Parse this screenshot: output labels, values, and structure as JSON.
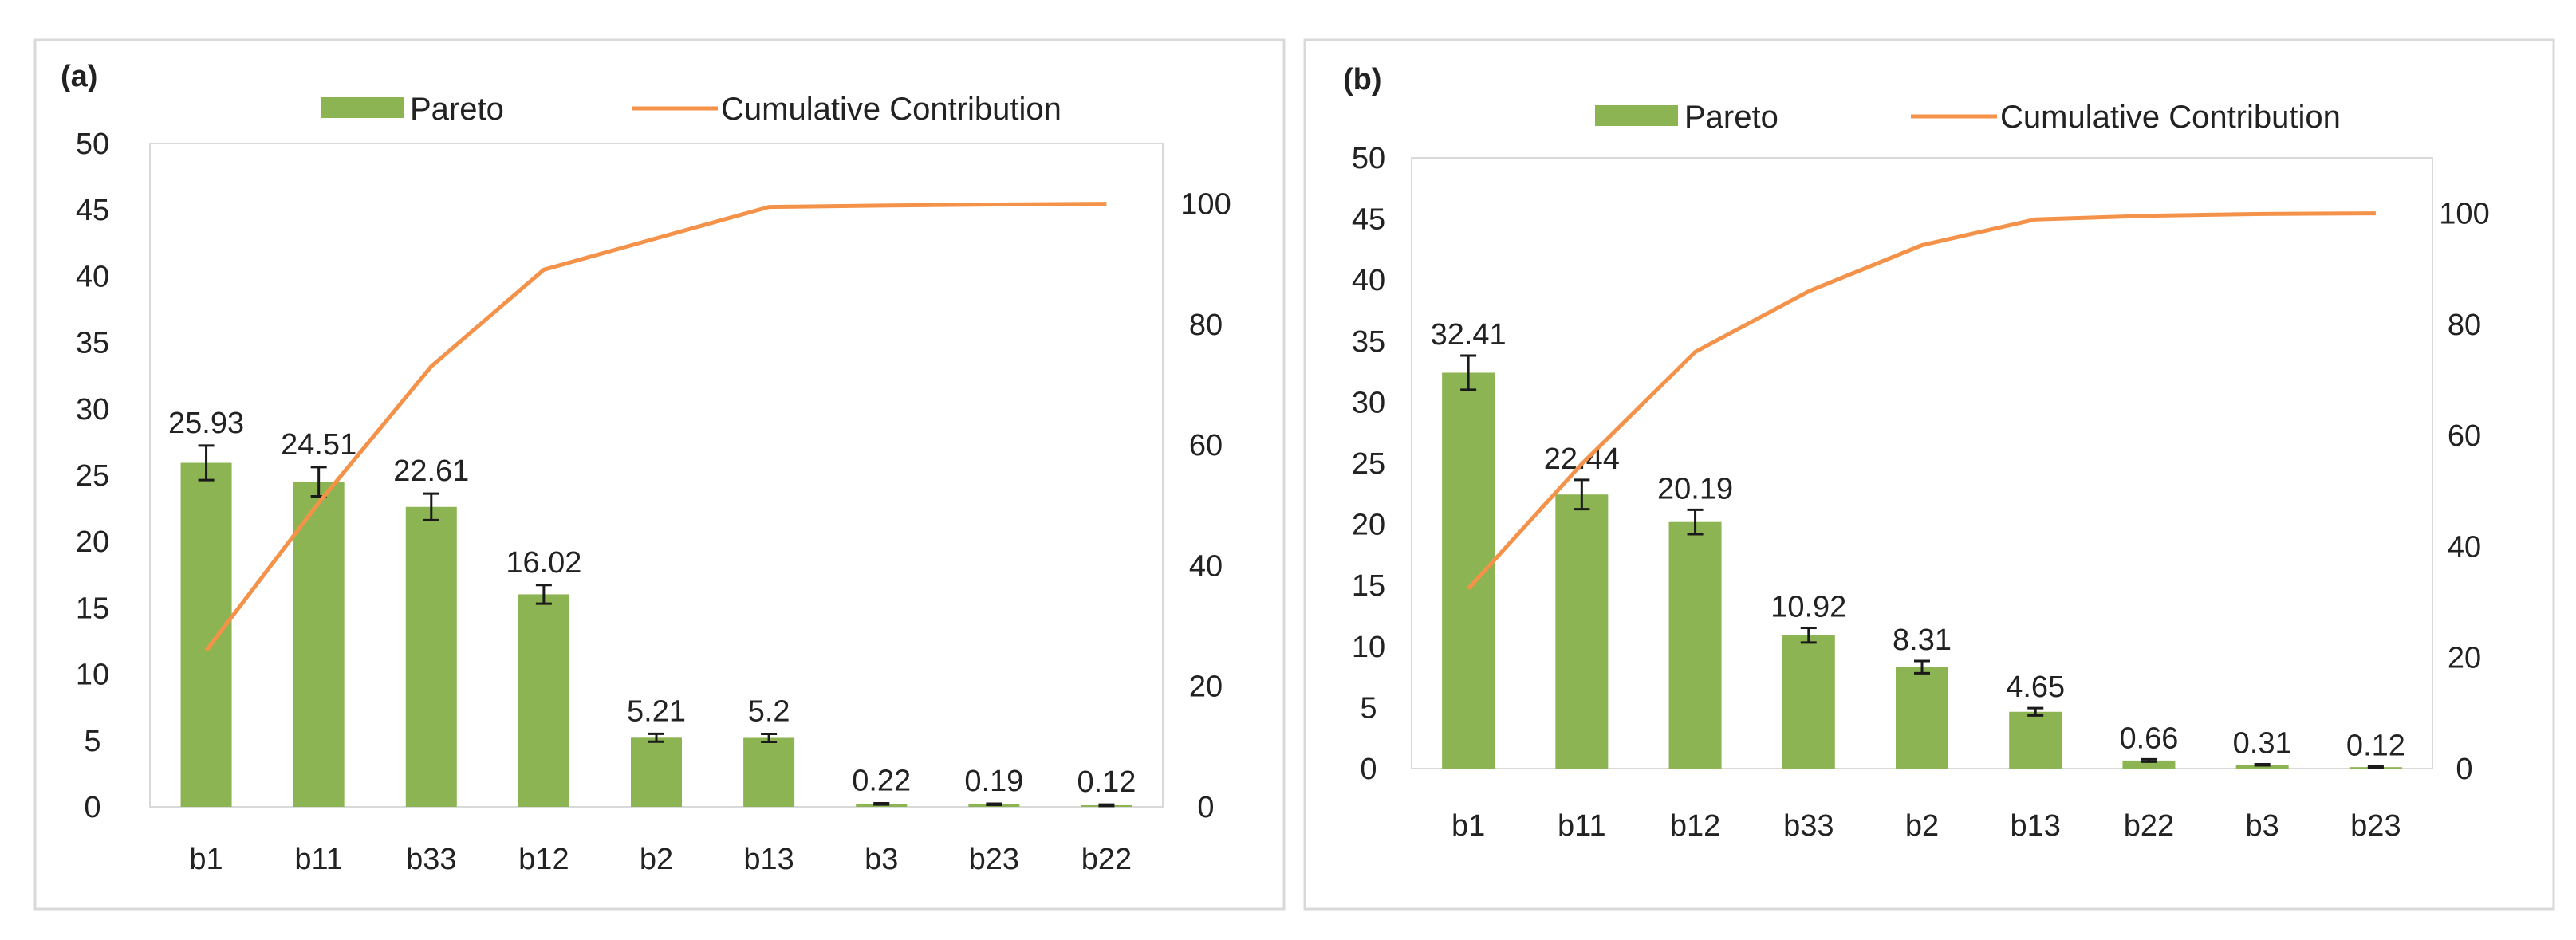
{
  "colors": {
    "bar": "#8db452",
    "line": "#f4924a"
  },
  "chart_data": [
    {
      "type": "bar",
      "title": "",
      "panel_label": "(a)",
      "xlabel": "",
      "ylabel": "",
      "categories": [
        "b1",
        "b11",
        "b33",
        "b12",
        "b2",
        "b13",
        "b3",
        "b23",
        "b22"
      ],
      "series": [
        {
          "name": "Pareto",
          "type": "bar",
          "axis": "left",
          "values": [
            25.93,
            24.51,
            22.61,
            16.02,
            5.21,
            5.2,
            0.22,
            0.19,
            0.12
          ],
          "errors": [
            1.3,
            1.1,
            1.0,
            0.7,
            0.3,
            0.3,
            0.05,
            0.05,
            0.05
          ],
          "labels": [
            "25.93",
            "24.51",
            "22.61",
            "16.02",
            "5.21",
            "5.2",
            "0.22",
            "0.19",
            "0.12"
          ]
        },
        {
          "name": "Cumulative Contribution",
          "type": "line",
          "axis": "right",
          "values": [
            25.93,
            50.44,
            73.05,
            89.07,
            94.28,
            99.48,
            99.7,
            99.89,
            100.01
          ]
        }
      ],
      "ylim": [
        0,
        50
      ],
      "yticks": [
        "0",
        "5",
        "10",
        "15",
        "20",
        "25",
        "30",
        "35",
        "40",
        "45",
        "50"
      ],
      "y2lim": [
        0,
        110
      ],
      "y2ticks": [
        "0",
        "20",
        "40",
        "60",
        "80",
        "100"
      ],
      "legend": "top-center",
      "grid": false
    },
    {
      "type": "bar",
      "title": "",
      "panel_label": "(b)",
      "xlabel": "",
      "ylabel": "",
      "categories": [
        "b1",
        "b11",
        "b12",
        "b33",
        "b2",
        "b13",
        "b22",
        "b3",
        "b23"
      ],
      "series": [
        {
          "name": "Pareto",
          "type": "bar",
          "axis": "left",
          "values": [
            32.41,
            22.44,
            20.19,
            10.92,
            8.31,
            4.65,
            0.66,
            0.31,
            0.12
          ],
          "errors": [
            1.4,
            1.2,
            1.0,
            0.6,
            0.5,
            0.3,
            0.1,
            0.05,
            0.05
          ],
          "labels": [
            "32.41",
            "22.44",
            "20.19",
            "10.92",
            "8.31",
            "4.65",
            "0.66",
            "0.31",
            "0.12"
          ]
        },
        {
          "name": "Cumulative Contribution",
          "type": "line",
          "axis": "right",
          "values": [
            32.41,
            54.85,
            75.04,
            85.96,
            94.27,
            98.92,
            99.58,
            99.89,
            100.01
          ]
        }
      ],
      "ylim": [
        0,
        50
      ],
      "yticks": [
        "0",
        "5",
        "10",
        "15",
        "20",
        "25",
        "30",
        "35",
        "40",
        "45",
        "50"
      ],
      "y2lim": [
        0,
        110
      ],
      "y2ticks": [
        "0",
        "20",
        "40",
        "60",
        "80",
        "100"
      ],
      "legend": "top-center",
      "grid": false
    }
  ]
}
